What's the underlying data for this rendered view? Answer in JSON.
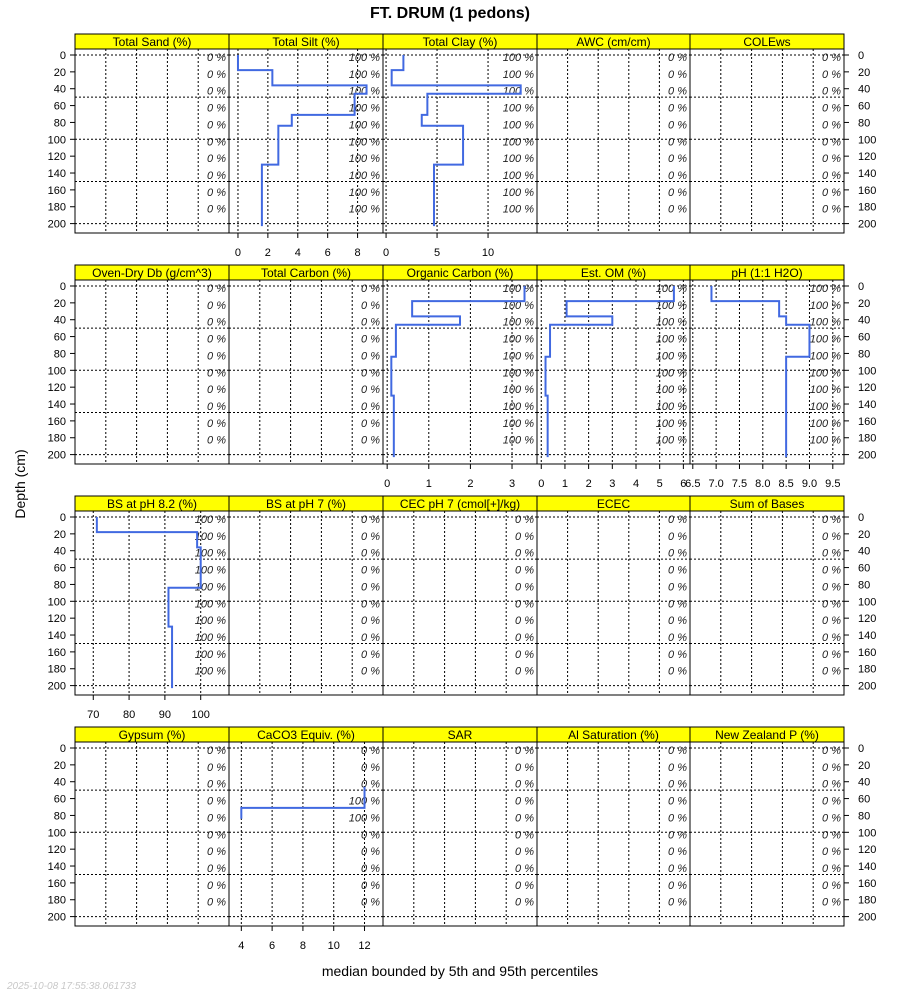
{
  "chart_data": {
    "type": "line",
    "title": "FT. DRUM (1 pedons)",
    "xlabel": "median bounded by 5th and 95th percentiles",
    "ylabel": "Depth (cm)",
    "timestamp": "2025-10-08 17:55:38.061733",
    "ylim": [
      212,
      -7
    ],
    "depth_ticks": [
      "0",
      "20",
      "40",
      "60",
      "80",
      "100",
      "120",
      "140",
      "160",
      "180",
      "200"
    ],
    "series_color": "#4169e1",
    "strip_color": "#ffff00",
    "panels": [
      {
        "name": "Total Sand (%)",
        "pct": [
          "0 %",
          "0 %",
          "0 %",
          "0 %",
          "0 %",
          "0 %",
          "0 %",
          "0 %",
          "0 %",
          "0 %"
        ]
      },
      {
        "name": "Total Silt (%)",
        "xlim": [
          -0.6,
          9.7
        ],
        "ticks": [
          0,
          2,
          4,
          6,
          8
        ],
        "tick_labels": [
          "0",
          "2",
          "4",
          "6",
          "8"
        ],
        "pct": [
          "100 %",
          "100 %",
          "100 %",
          "100 %",
          "100 %",
          "100 %",
          "100 %",
          "100 %",
          "100 %",
          "100 %"
        ],
        "horizons": [
          [
            0,
            18,
            0.0
          ],
          [
            18,
            36,
            2.3
          ],
          [
            36,
            46,
            8.6
          ],
          [
            46,
            71,
            7.8
          ],
          [
            71,
            84,
            3.6
          ],
          [
            84,
            130,
            2.7
          ],
          [
            130,
            203,
            1.6
          ]
        ]
      },
      {
        "name": "Total Clay (%)",
        "xlim": [
          -0.3,
          14.8
        ],
        "ticks": [
          0,
          5,
          10
        ],
        "tick_labels": [
          "0",
          "5",
          "10"
        ],
        "pct": [
          "100 %",
          "100 %",
          "100 %",
          "100 %",
          "100 %",
          "100 %",
          "100 %",
          "100 %",
          "100 %",
          "100 %"
        ],
        "horizons": [
          [
            0,
            18,
            1.7
          ],
          [
            18,
            36,
            0.55
          ],
          [
            36,
            46,
            13.2
          ],
          [
            46,
            71,
            4.05
          ],
          [
            71,
            84,
            3.5
          ],
          [
            84,
            130,
            7.55
          ],
          [
            130,
            203,
            4.7
          ]
        ]
      },
      {
        "name": "AWC (cm/cm)",
        "pct": [
          "0 %",
          "0 %",
          "0 %",
          "0 %",
          "0 %",
          "0 %",
          "0 %",
          "0 %",
          "0 %",
          "0 %"
        ]
      },
      {
        "name": "COLEws",
        "pct": [
          "0 %",
          "0 %",
          "0 %",
          "0 %",
          "0 %",
          "0 %",
          "0 %",
          "0 %",
          "0 %",
          "0 %"
        ]
      },
      {
        "name": "Oven-Dry Db (g/cm^3)",
        "pct": [
          "0 %",
          "0 %",
          "0 %",
          "0 %",
          "0 %",
          "0 %",
          "0 %",
          "0 %",
          "0 %",
          "0 %"
        ]
      },
      {
        "name": "Total Carbon (%)",
        "pct": [
          "0 %",
          "0 %",
          "0 %",
          "0 %",
          "0 %",
          "0 %",
          "0 %",
          "0 %",
          "0 %",
          "0 %"
        ]
      },
      {
        "name": "Organic Carbon (%)",
        "xlim": [
          -0.1,
          3.6
        ],
        "ticks": [
          0,
          1,
          2,
          3
        ],
        "tick_labels": [
          "0",
          "1",
          "2",
          "3"
        ],
        "pct": [
          "100 %",
          "100 %",
          "100 %",
          "100 %",
          "100 %",
          "100 %",
          "100 %",
          "100 %",
          "100 %",
          "100 %"
        ],
        "horizons": [
          [
            0,
            18,
            3.3
          ],
          [
            18,
            36,
            0.6
          ],
          [
            36,
            46,
            1.75
          ],
          [
            46,
            84,
            0.21
          ],
          [
            84,
            130,
            0.1
          ],
          [
            130,
            203,
            0.16
          ]
        ]
      },
      {
        "name": "Est. OM (%)",
        "xlim": [
          -0.18,
          6.28
        ],
        "ticks": [
          0,
          1,
          2,
          3,
          4,
          5,
          6
        ],
        "tick_labels": [
          "0",
          "1",
          "2",
          "3",
          "4",
          "5",
          "6"
        ],
        "pct": [
          "100 %",
          "100 %",
          "100 %",
          "100 %",
          "100 %",
          "100 %",
          "100 %",
          "100 %",
          "100 %",
          "100 %"
        ],
        "horizons": [
          [
            0,
            18,
            5.6
          ],
          [
            18,
            36,
            1.07
          ],
          [
            36,
            46,
            3.0
          ],
          [
            46,
            84,
            0.37
          ],
          [
            84,
            130,
            0.18
          ],
          [
            130,
            203,
            0.27
          ]
        ]
      },
      {
        "name": "pH (1:1 H2O)",
        "xlim": [
          6.44,
          9.74
        ],
        "ticks": [
          6.5,
          7,
          7.5,
          8,
          8.5,
          9,
          9.5
        ],
        "tick_labels": [
          "6.5",
          "7.0",
          "7.5",
          "8.0",
          "8.5",
          "9.0",
          "9.5"
        ],
        "pct": [
          "100 %",
          "100 %",
          "100 %",
          "100 %",
          "100 %",
          "100 %",
          "100 %",
          "100 %",
          "100 %",
          "100 %"
        ],
        "horizons": [
          [
            0,
            18,
            6.9
          ],
          [
            18,
            36,
            8.35
          ],
          [
            36,
            46,
            8.5
          ],
          [
            46,
            84,
            9.0
          ],
          [
            84,
            203,
            8.5
          ]
        ]
      },
      {
        "name": "BS at pH 8.2 (%)",
        "xlim": [
          64.9,
          107.9
        ],
        "ticks": [
          70,
          80,
          90,
          100
        ],
        "tick_labels": [
          "70",
          "80",
          "90",
          "100"
        ],
        "pct": [
          "100 %",
          "100 %",
          "100 %",
          "100 %",
          "100 %",
          "100 %",
          "100 %",
          "100 %",
          "100 %",
          "100 %"
        ],
        "horizons": [
          [
            0,
            18,
            71
          ],
          [
            18,
            36,
            99
          ],
          [
            36,
            84,
            100
          ],
          [
            84,
            130,
            91
          ],
          [
            130,
            203,
            92
          ]
        ]
      },
      {
        "name": "BS at pH 7 (%)",
        "pct": [
          "0 %",
          "0 %",
          "0 %",
          "0 %",
          "0 %",
          "0 %",
          "0 %",
          "0 %",
          "0 %",
          "0 %"
        ]
      },
      {
        "name": "CEC pH 7 (cmol[+]/kg)",
        "pct": [
          "0 %",
          "0 %",
          "0 %",
          "0 %",
          "0 %",
          "0 %",
          "0 %",
          "0 %",
          "0 %",
          "0 %"
        ]
      },
      {
        "name": "ECEC",
        "pct": [
          "0 %",
          "0 %",
          "0 %",
          "0 %",
          "0 %",
          "0 %",
          "0 %",
          "0 %",
          "0 %",
          "0 %"
        ]
      },
      {
        "name": "Sum of Bases",
        "pct": [
          "0 %",
          "0 %",
          "0 %",
          "0 %",
          "0 %",
          "0 %",
          "0 %",
          "0 %",
          "0 %",
          "0 %"
        ]
      },
      {
        "name": "Gypsum (%)",
        "pct": [
          "0 %",
          "0 %",
          "0 %",
          "0 %",
          "0 %",
          "0 %",
          "0 %",
          "0 %",
          "0 %",
          "0 %"
        ]
      },
      {
        "name": "CaCO3 Equiv. (%)",
        "xlim": [
          3.2,
          13.2
        ],
        "ticks": [
          4,
          6,
          8,
          10,
          12
        ],
        "tick_labels": [
          "4",
          "6",
          "8",
          "10",
          "12"
        ],
        "pct": [
          "0 %",
          "0 %",
          "0 %",
          "100 %",
          "100 %",
          "0 %",
          "0 %",
          "0 %",
          "0 %",
          "0 %"
        ],
        "horizons": [
          [
            46,
            71,
            12
          ],
          [
            71,
            84,
            4
          ]
        ]
      },
      {
        "name": "SAR",
        "pct": [
          "0 %",
          "0 %",
          "0 %",
          "0 %",
          "0 %",
          "0 %",
          "0 %",
          "0 %",
          "0 %",
          "0 %"
        ]
      },
      {
        "name": "Al Saturation (%)",
        "pct": [
          "0 %",
          "0 %",
          "0 %",
          "0 %",
          "0 %",
          "0 %",
          "0 %",
          "0 %",
          "0 %",
          "0 %"
        ]
      },
      {
        "name": "New Zealand P (%)",
        "pct": [
          "0 %",
          "0 %",
          "0 %",
          "0 %",
          "0 %",
          "0 %",
          "0 %",
          "0 %",
          "0 %",
          "0 %"
        ]
      }
    ]
  }
}
